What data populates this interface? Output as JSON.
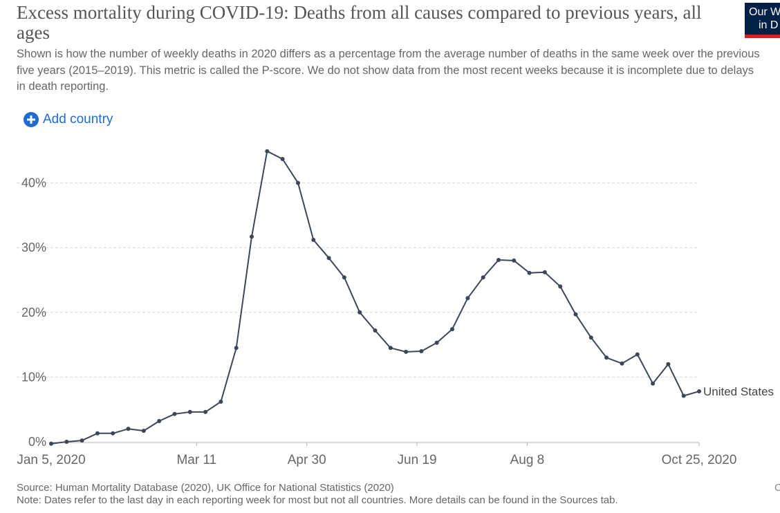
{
  "header": {
    "title": "Excess mortality during COVID-19: Deaths from all causes compared to previous years, all ages",
    "subtitle": "Shown is how the number of weekly deaths in 2020 differs as a percentage from the average number of deaths in the same week over the previous five years (2015–2019). This metric is called the P-score. We do not show data from the most recent weeks because it is incomplete due to delays in death reporting."
  },
  "logo": {
    "line1": "Our W",
    "line2": "in D"
  },
  "controls": {
    "add_country_label": "Add country"
  },
  "footer": {
    "source": "Source: Human Mortality Database (2020), UK Office for National Statistics (2020)",
    "note": "Note: Dates refer to the last day in each reporting week for most but not all countries. More details can be found in the Sources tab.",
    "page_marker": "C"
  },
  "chart_data": {
    "type": "line",
    "title": "Excess mortality during COVID-19: Deaths from all causes compared to previous years, all ages",
    "xlabel": "",
    "ylabel": "",
    "ylim": [
      0,
      45
    ],
    "yticks": [
      0,
      10,
      20,
      30,
      40
    ],
    "ytick_labels": [
      "0%",
      "10%",
      "20%",
      "30%",
      "40%"
    ],
    "xticks": [
      "2020-01-05",
      "2020-03-11",
      "2020-04-30",
      "2020-06-19",
      "2020-08-08",
      "2020-10-25"
    ],
    "xtick_labels": [
      "Jan 5, 2020",
      "Mar 11",
      "Apr 30",
      "Jun 19",
      "Aug 8",
      "Oct 25, 2020"
    ],
    "xlim": [
      "2020-01-05",
      "2020-10-25"
    ],
    "grid": "horizontal dashed",
    "series": [
      {
        "name": "United States",
        "color": "#3c4659",
        "x": [
          "2020-01-05",
          "2020-01-12",
          "2020-01-19",
          "2020-01-26",
          "2020-02-02",
          "2020-02-09",
          "2020-02-16",
          "2020-02-23",
          "2020-03-01",
          "2020-03-08",
          "2020-03-15",
          "2020-03-22",
          "2020-03-29",
          "2020-04-05",
          "2020-04-12",
          "2020-04-19",
          "2020-04-26",
          "2020-05-03",
          "2020-05-10",
          "2020-05-17",
          "2020-05-24",
          "2020-05-31",
          "2020-06-07",
          "2020-06-14",
          "2020-06-21",
          "2020-06-28",
          "2020-07-05",
          "2020-07-12",
          "2020-07-19",
          "2020-07-26",
          "2020-08-02",
          "2020-08-09",
          "2020-08-16",
          "2020-08-23",
          "2020-08-30",
          "2020-09-06",
          "2020-09-13",
          "2020-09-20",
          "2020-09-27",
          "2020-10-04",
          "2020-10-11",
          "2020-10-18",
          "2020-10-25"
        ],
        "values": [
          -0.3,
          0.0,
          0.2,
          1.3,
          1.3,
          2.0,
          1.7,
          3.2,
          4.3,
          4.6,
          4.6,
          6.2,
          14.5,
          31.7,
          44.9,
          43.7,
          40.0,
          31.2,
          28.4,
          25.4,
          20.0,
          17.2,
          14.5,
          13.9,
          14.0,
          15.3,
          17.4,
          22.2,
          25.4,
          28.1,
          28.0,
          26.1,
          26.2,
          24.0,
          19.7,
          16.1,
          13.0,
          12.1,
          13.5,
          9.0,
          12.0,
          7.1,
          7.8
        ]
      }
    ]
  }
}
